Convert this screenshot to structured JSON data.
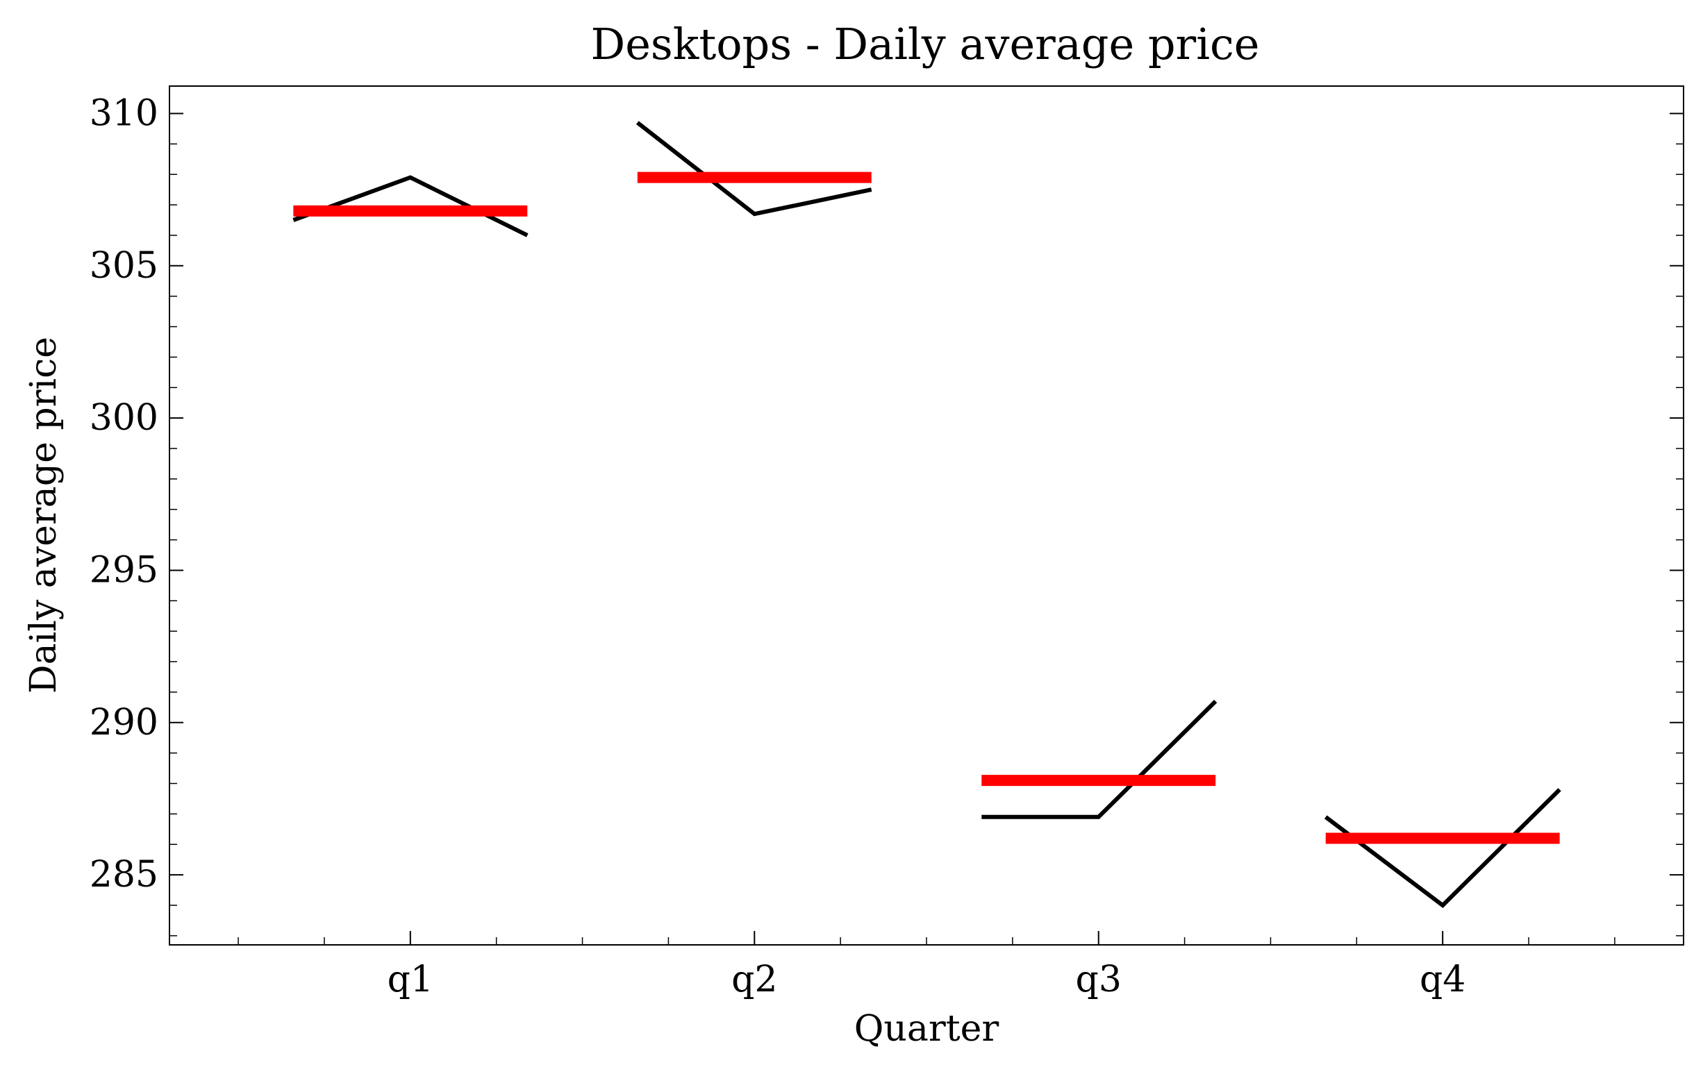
{
  "chart_data": {
    "type": "line",
    "title": "Desktops - Daily average price",
    "xlabel": "Quarter",
    "ylabel": "Daily average price",
    "categories": [
      "q1",
      "q2",
      "q3",
      "q4"
    ],
    "yticks": [
      285,
      290,
      295,
      300,
      305,
      310
    ],
    "ylim": [
      282.7,
      310.9
    ],
    "monthly_values": [
      [
        306.5,
        307.9,
        306.0
      ],
      [
        309.7,
        306.7,
        307.5
      ],
      [
        286.9,
        286.9,
        290.7
      ],
      [
        286.9,
        284.0,
        287.8
      ]
    ],
    "quarter_means": [
      306.8,
      307.9,
      288.1,
      286.2
    ],
    "colors": {
      "lines": "#000000",
      "means": "#ff0000"
    },
    "grid": false
  }
}
